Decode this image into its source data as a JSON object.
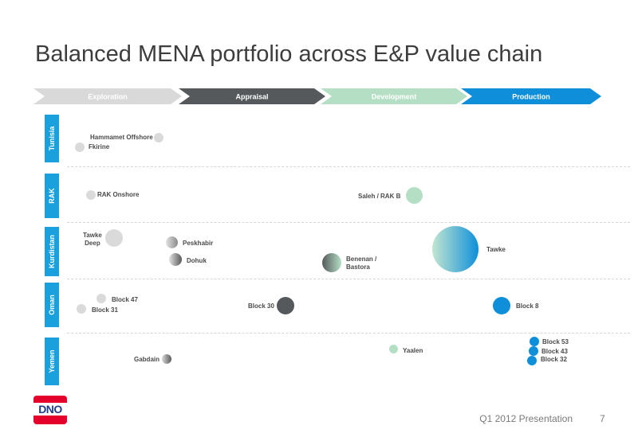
{
  "title": "Balanced MENA portfolio across E&P value chain",
  "stages": [
    {
      "label": "Exploration",
      "fill": "#d9d9d9",
      "text_color": "#ffffff"
    },
    {
      "label": "Appraisal",
      "fill": "#55595c",
      "text_color": "#ffffff"
    },
    {
      "label": "Development",
      "fill": "#b5dfc5",
      "text_color": "#ffffff"
    },
    {
      "label": "Production",
      "fill": "#0f8fd9",
      "text_color": "#ffffff"
    }
  ],
  "countries": [
    {
      "label": "Tunisia"
    },
    {
      "label": "RAK"
    },
    {
      "label": "Kurdistan"
    },
    {
      "label": "Oman"
    },
    {
      "label": "Yemen"
    }
  ],
  "colors": {
    "country_tab": "#1aa0dc",
    "exploration": "#d9d9d9",
    "appraisal": "#55595c",
    "development": "#b5dfc5",
    "production": "#0f8fd9"
  },
  "assets": [
    {
      "label": "Hammamet Offshore",
      "country": "Tunisia",
      "stage": "Exploration"
    },
    {
      "label": "Fkirine",
      "country": "Tunisia",
      "stage": "Exploration"
    },
    {
      "label": "RAK Onshore",
      "country": "RAK",
      "stage": "Exploration"
    },
    {
      "label": "Saleh / RAK B",
      "country": "RAK",
      "stage": "Development"
    },
    {
      "label": "Tawke Deep",
      "label_lines": [
        "Tawke",
        "Deep"
      ],
      "country": "Kurdistan",
      "stage": "Exploration"
    },
    {
      "label": "Peskhabir",
      "country": "Kurdistan",
      "stage": "Exploration-Appraisal"
    },
    {
      "label": "Dohuk",
      "country": "Kurdistan",
      "stage": "Exploration-Appraisal"
    },
    {
      "label": "Benenan / Bastora",
      "label_lines": [
        "Benenan /",
        "Bastora"
      ],
      "country": "Kurdistan",
      "stage": "Appraisal-Development"
    },
    {
      "label": "Tawke",
      "country": "Kurdistan",
      "stage": "Development-Production"
    },
    {
      "label": "Block 47",
      "country": "Oman",
      "stage": "Exploration"
    },
    {
      "label": "Block 31",
      "country": "Oman",
      "stage": "Exploration"
    },
    {
      "label": "Block 30",
      "country": "Oman",
      "stage": "Appraisal"
    },
    {
      "label": "Block 8",
      "country": "Oman",
      "stage": "Production"
    },
    {
      "label": "Gabdain",
      "country": "Yemen",
      "stage": "Exploration-Appraisal"
    },
    {
      "label": "Yaalen",
      "country": "Yemen",
      "stage": "Development"
    },
    {
      "label": "Block 53",
      "country": "Yemen",
      "stage": "Production"
    },
    {
      "label": "Block 43",
      "country": "Yemen",
      "stage": "Production"
    },
    {
      "label": "Block 32",
      "country": "Yemen",
      "stage": "Production"
    }
  ],
  "footer": {
    "text": "Q1 2012 Presentation",
    "page": "7"
  },
  "logo": {
    "text": "DNO"
  }
}
